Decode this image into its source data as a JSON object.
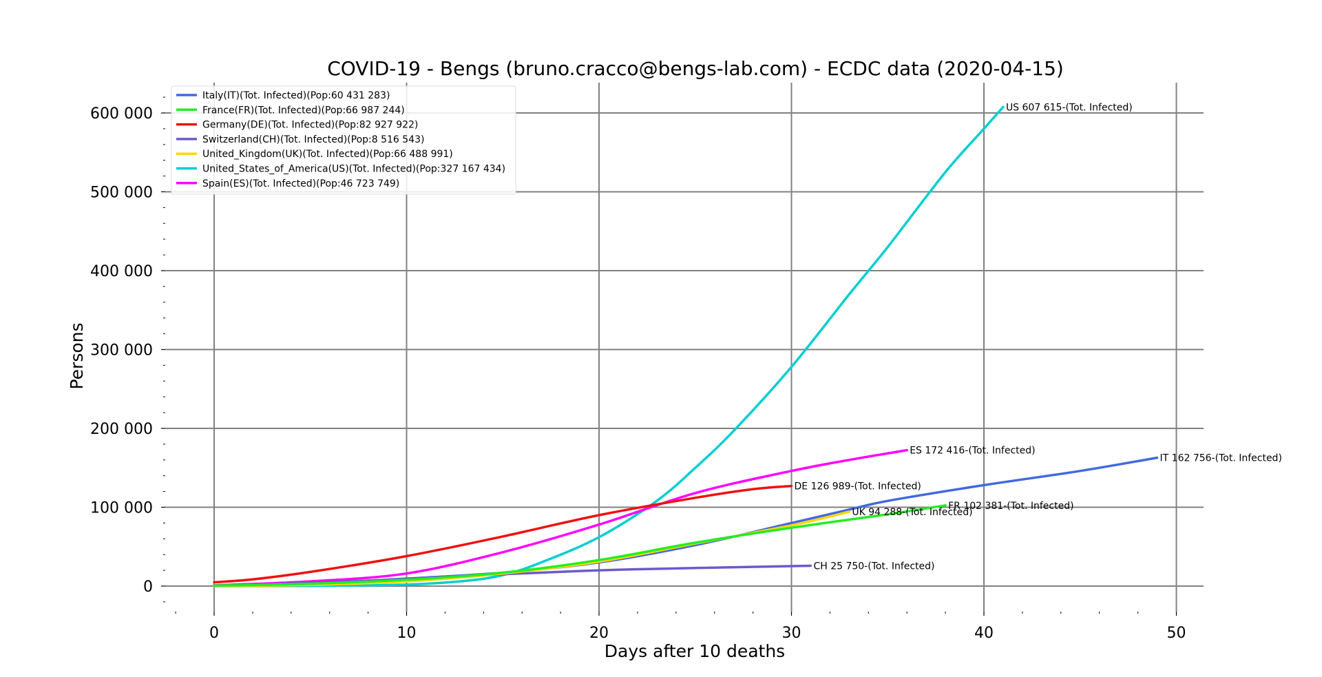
{
  "chart_data": {
    "type": "line",
    "title": "COVID-19 - Bengs (bruno.cracco@bengs-lab.com) - ECDC data  (2020-04-15)",
    "xlabel": "Days after 10 deaths",
    "ylabel": "Persons",
    "xlim": [
      -2.5,
      51.5
    ],
    "ylim": [
      -22000,
      635000
    ],
    "x_ticks": [
      0,
      10,
      20,
      30,
      40,
      50
    ],
    "x_tick_labels": [
      "0",
      "10",
      "20",
      "30",
      "40",
      "50"
    ],
    "y_ticks": [
      0,
      100000,
      200000,
      300000,
      400000,
      500000,
      600000
    ],
    "y_tick_labels": [
      "0",
      "100 000",
      "200 000",
      "300 000",
      "400 000",
      "500 000",
      "600 000"
    ],
    "grid": true,
    "legend_position": "top-left",
    "series": [
      {
        "name": "Italy(IT)(Tot. Infected)(Pop:60 431 283)",
        "color": "#4169e1",
        "end_label": "IT 162 756-(Tot. Infected)",
        "x": [
          0,
          5,
          10,
          15,
          20,
          25,
          30,
          33,
          35,
          40,
          45,
          49
        ],
        "y": [
          200,
          3500,
          9500,
          17000,
          30000,
          52000,
          80000,
          97000,
          108000,
          128000,
          146000,
          162756
        ]
      },
      {
        "name": "France(FR)(Tot. Infected)(Pop:66 987 244)",
        "color": "#22ee22",
        "end_label": "FR 102 381-(Tot. Infected)",
        "x": [
          0,
          5,
          10,
          15,
          20,
          25,
          30,
          35,
          38
        ],
        "y": [
          700,
          3000,
          8000,
          17000,
          33000,
          55000,
          74000,
          91000,
          102381
        ]
      },
      {
        "name": "Germany(DE)(Tot. Infected)(Pop:82 927 922)",
        "color": "#ee1111",
        "end_label": "DE 126 989-(Tot. Infected)",
        "x": [
          0,
          2,
          5,
          10,
          15,
          20,
          25,
          28,
          30
        ],
        "y": [
          4800,
          8500,
          18000,
          38000,
          63000,
          90000,
          112000,
          123000,
          126989
        ]
      },
      {
        "name": "Switzerland(CH)(Tot. Infected)(Pop:8 516 543)",
        "color": "#6a5acd",
        "end_label": "CH 25 750-(Tot. Infected)",
        "x": [
          0,
          5,
          10,
          15,
          20,
          25,
          31
        ],
        "y": [
          500,
          4000,
          9000,
          15000,
          20000,
          23000,
          25750
        ]
      },
      {
        "name": "United_Kingdom(UK)(Tot. Infected)(Pop:66 488 991)",
        "color": "#ffd700",
        "end_label": "UK 94 288-(Tot. Infected)",
        "x": [
          0,
          5,
          10,
          15,
          20,
          25,
          30,
          33
        ],
        "y": [
          300,
          1500,
          6000,
          16000,
          31000,
          54000,
          77000,
          94288
        ]
      },
      {
        "name": "United_States_of_America(US)(Tot. Infected)(Pop:327 167 434)",
        "color": "#00ced1",
        "end_label": "US 607 615-(Tot. Infected)",
        "x": [
          0,
          5,
          10,
          13,
          15,
          17,
          20,
          23,
          25,
          27,
          30,
          33,
          35,
          38,
          40,
          41
        ],
        "y": [
          0,
          300,
          2000,
          6500,
          14000,
          30000,
          62000,
          108000,
          150000,
          197000,
          278000,
          370000,
          430000,
          525000,
          580000,
          607615
        ]
      },
      {
        "name": "Spain(ES)(Tot. Infected)(Pop:46 723 749)",
        "color": "#ff00ff",
        "end_label": "ES 172 416-(Tot. Infected)",
        "x": [
          0,
          5,
          10,
          15,
          20,
          25,
          30,
          33,
          36
        ],
        "y": [
          1000,
          6000,
          16000,
          43000,
          78000,
          118000,
          146000,
          160000,
          172416
        ]
      }
    ]
  }
}
